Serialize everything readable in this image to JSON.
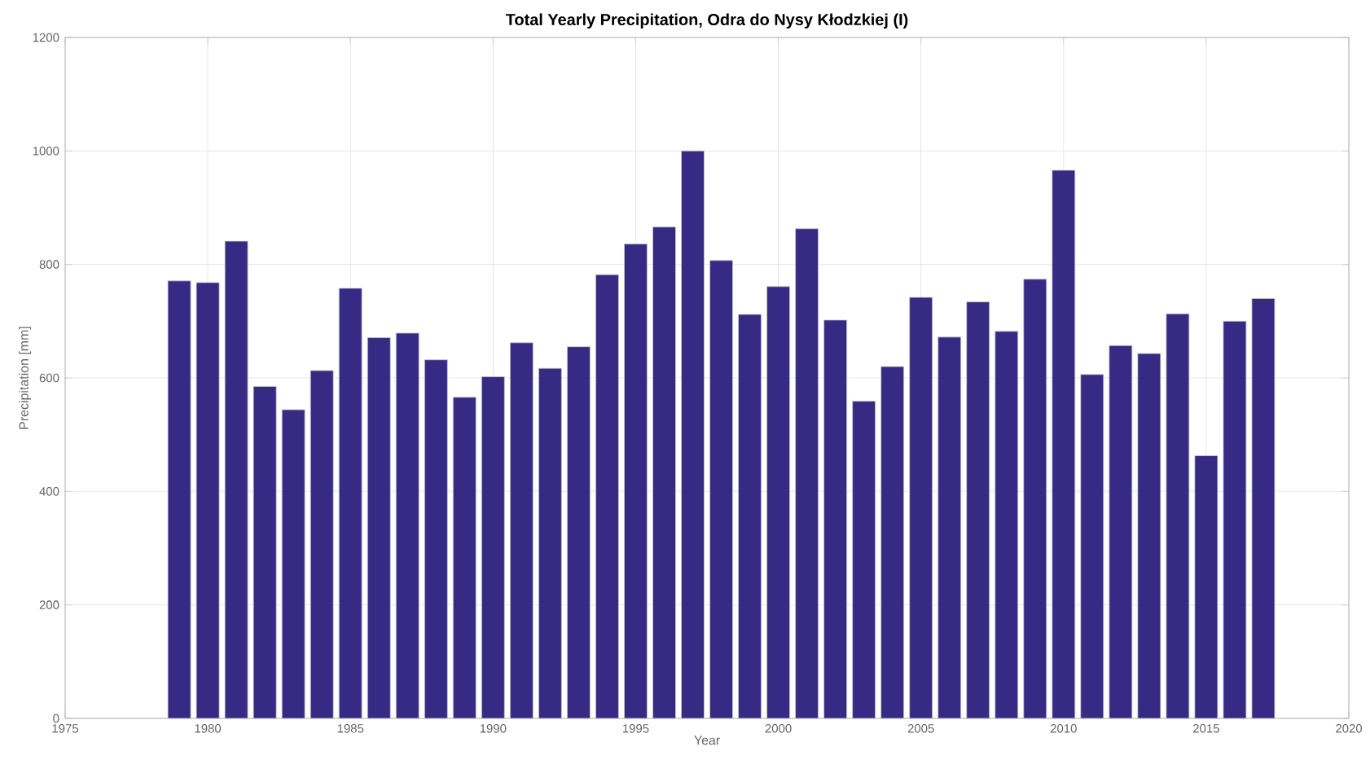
{
  "chart_data": {
    "type": "bar",
    "title": "Total Yearly Precipitation, Odra do Nysy Kłodzkiej (I)",
    "xlabel": "Year",
    "ylabel": "Precipitation [mm]",
    "x": [
      1979,
      1980,
      1981,
      1982,
      1983,
      1984,
      1985,
      1986,
      1987,
      1988,
      1989,
      1990,
      1991,
      1992,
      1993,
      1994,
      1995,
      1996,
      1997,
      1998,
      1999,
      2000,
      2001,
      2002,
      2003,
      2004,
      2005,
      2006,
      2007,
      2008,
      2009,
      2010,
      2011,
      2012,
      2013,
      2014,
      2015,
      2016,
      2017
    ],
    "values": [
      771,
      768,
      841,
      585,
      544,
      613,
      758,
      671,
      679,
      632,
      566,
      602,
      662,
      617,
      655,
      782,
      836,
      866,
      1000,
      807,
      712,
      761,
      863,
      702,
      559,
      620,
      742,
      672,
      734,
      682,
      774,
      966,
      606,
      657,
      643,
      713,
      463,
      700,
      740
    ],
    "color": "#362a84",
    "xlim": [
      1975,
      2020
    ],
    "xticks": [
      1975,
      1980,
      1985,
      1990,
      1995,
      2000,
      2005,
      2010,
      2015,
      2020
    ],
    "ylim": [
      0,
      1200
    ],
    "yticks": [
      0,
      200,
      400,
      600,
      800,
      1000,
      1200
    ],
    "grid": true
  }
}
